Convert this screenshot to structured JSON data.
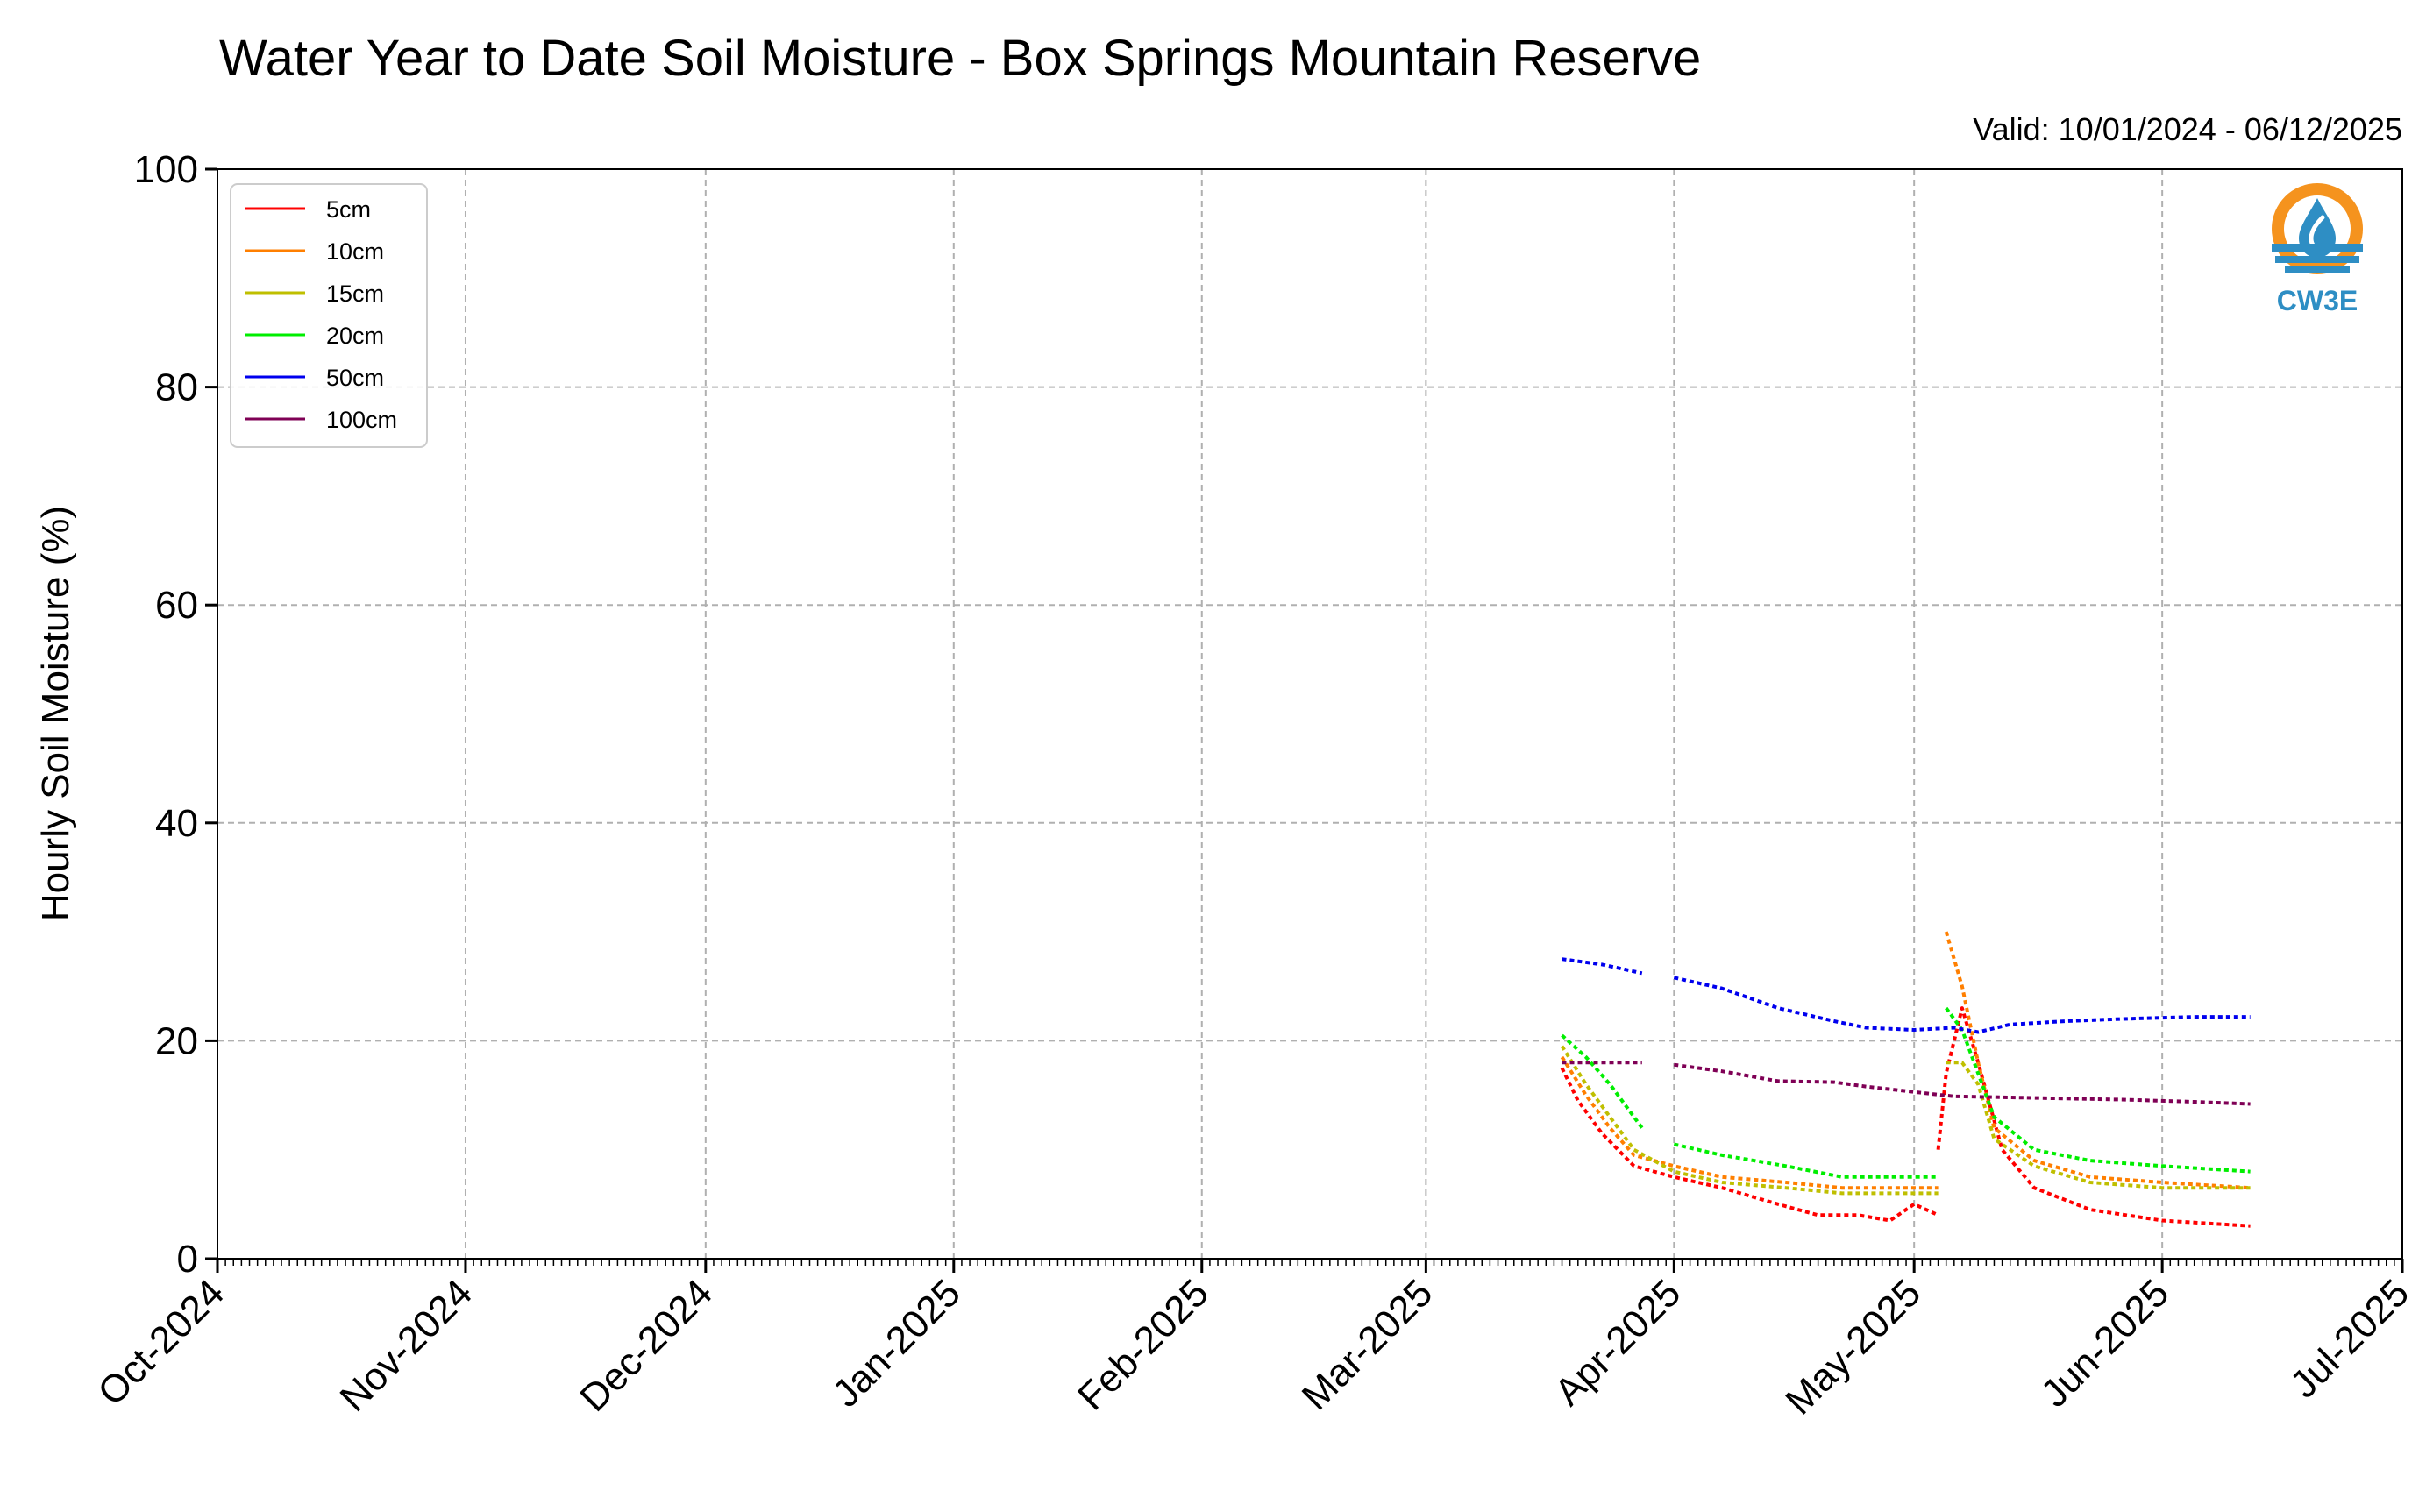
{
  "chart_data": {
    "type": "line",
    "title": "Water Year to Date Soil Moisture - Box Springs Mountain Reserve",
    "subtitle": "Valid: 10/01/2024 - 06/12/2025",
    "ylabel": "Hourly Soil Moisture (%)",
    "xlabel": "",
    "ylim": [
      0,
      100
    ],
    "xlim": [
      "2024-10-01",
      "2025-07-01"
    ],
    "yticks": [
      "0",
      "20",
      "40",
      "60",
      "80",
      "100"
    ],
    "xticks": [
      "Oct-2024",
      "Nov-2024",
      "Dec-2024",
      "Jan-2025",
      "Feb-2025",
      "Mar-2025",
      "Apr-2025",
      "May-2025",
      "Jun-2025",
      "Jul-2025"
    ],
    "grid": true,
    "legend_position": "top-left",
    "series": [
      {
        "name": "5cm",
        "color": "#ff0000",
        "points": [
          [
            "2025-03-18",
            17.5
          ],
          [
            "2025-03-20",
            14.5
          ],
          [
            "2025-03-23",
            11.5
          ],
          [
            "2025-03-27",
            8.5
          ],
          [
            "2025-04-01",
            7.5
          ],
          [
            "2025-04-07",
            6.5
          ],
          [
            "2025-04-14",
            5.0
          ],
          [
            "2025-04-19",
            4.0
          ],
          [
            "2025-04-24",
            4.0
          ],
          [
            "2025-04-28",
            3.5
          ],
          [
            "2025-05-01",
            5.0
          ],
          [
            "2025-05-04",
            4.0
          ],
          null,
          [
            "2025-05-04",
            10.0
          ],
          [
            "2025-05-05",
            17.0
          ],
          [
            "2025-05-07",
            23.0
          ],
          [
            "2025-05-09",
            18.0
          ],
          [
            "2025-05-12",
            10.0
          ],
          [
            "2025-05-16",
            6.5
          ],
          [
            "2025-05-23",
            4.5
          ],
          [
            "2025-06-01",
            3.5
          ],
          [
            "2025-06-12",
            3.0
          ]
        ]
      },
      {
        "name": "10cm",
        "color": "#ff7f00",
        "points": [
          [
            "2025-03-18",
            18.5
          ],
          [
            "2025-03-21",
            15.0
          ],
          [
            "2025-03-24",
            12.0
          ],
          [
            "2025-03-27",
            9.5
          ],
          [
            "2025-04-01",
            8.5
          ],
          [
            "2025-04-07",
            7.5
          ],
          [
            "2025-04-15",
            7.0
          ],
          [
            "2025-04-22",
            6.5
          ],
          [
            "2025-05-01",
            6.5
          ],
          [
            "2025-05-04",
            6.5
          ],
          null,
          [
            "2025-05-05",
            30.0
          ],
          [
            "2025-05-07",
            25.0
          ],
          [
            "2025-05-09",
            18.0
          ],
          [
            "2025-05-11",
            12.0
          ],
          [
            "2025-05-16",
            9.0
          ],
          [
            "2025-05-23",
            7.5
          ],
          [
            "2025-06-01",
            7.0
          ],
          [
            "2025-06-12",
            6.5
          ]
        ]
      },
      {
        "name": "15cm",
        "color": "#bfbf00",
        "points": [
          [
            "2025-03-18",
            19.5
          ],
          [
            "2025-03-21",
            16.0
          ],
          [
            "2025-03-24",
            13.0
          ],
          [
            "2025-03-27",
            10.0
          ],
          [
            "2025-04-01",
            8.0
          ],
          [
            "2025-04-07",
            7.0
          ],
          [
            "2025-04-15",
            6.5
          ],
          [
            "2025-04-22",
            6.0
          ],
          [
            "2025-05-01",
            6.0
          ],
          [
            "2025-05-04",
            6.0
          ],
          null,
          [
            "2025-05-05",
            18.0
          ],
          [
            "2025-05-07",
            18.0
          ],
          [
            "2025-05-09",
            16.0
          ],
          [
            "2025-05-11",
            11.0
          ],
          [
            "2025-05-16",
            8.5
          ],
          [
            "2025-05-23",
            7.0
          ],
          [
            "2025-06-01",
            6.5
          ],
          [
            "2025-06-12",
            6.5
          ]
        ]
      },
      {
        "name": "20cm",
        "color": "#00ee00",
        "points": [
          [
            "2025-03-18",
            20.5
          ],
          [
            "2025-03-21",
            18.5
          ],
          [
            "2025-03-24",
            16.0
          ],
          [
            "2025-03-28",
            12.0
          ],
          null,
          [
            "2025-04-01",
            10.5
          ],
          [
            "2025-04-07",
            9.5
          ],
          [
            "2025-04-15",
            8.5
          ],
          [
            "2025-04-22",
            7.5
          ],
          [
            "2025-05-01",
            7.5
          ],
          [
            "2025-05-04",
            7.5
          ],
          null,
          [
            "2025-05-05",
            23.0
          ],
          [
            "2025-05-07",
            21.0
          ],
          [
            "2025-05-09",
            17.0
          ],
          [
            "2025-05-11",
            13.0
          ],
          [
            "2025-05-16",
            10.0
          ],
          [
            "2025-05-23",
            9.0
          ],
          [
            "2025-06-01",
            8.5
          ],
          [
            "2025-06-12",
            8.0
          ]
        ]
      },
      {
        "name": "50cm",
        "color": "#0000ee",
        "points": [
          [
            "2025-03-18",
            27.5
          ],
          [
            "2025-03-23",
            27.0
          ],
          [
            "2025-03-28",
            26.2
          ],
          null,
          [
            "2025-04-01",
            25.8
          ],
          [
            "2025-04-07",
            24.8
          ],
          [
            "2025-04-14",
            23.0
          ],
          [
            "2025-04-21",
            21.8
          ],
          [
            "2025-04-25",
            21.2
          ],
          [
            "2025-05-01",
            21.0
          ],
          [
            "2025-05-06",
            21.2
          ],
          [
            "2025-05-09",
            20.8
          ],
          [
            "2025-05-13",
            21.5
          ],
          [
            "2025-05-20",
            21.8
          ],
          [
            "2025-05-27",
            22.0
          ],
          [
            "2025-06-05",
            22.2
          ],
          [
            "2025-06-12",
            22.2
          ]
        ]
      },
      {
        "name": "100cm",
        "color": "#7f0055",
        "points": [
          [
            "2025-03-18",
            18.0
          ],
          [
            "2025-03-23",
            18.0
          ],
          [
            "2025-03-28",
            18.0
          ],
          null,
          [
            "2025-04-01",
            17.8
          ],
          [
            "2025-04-07",
            17.2
          ],
          [
            "2025-04-14",
            16.3
          ],
          [
            "2025-04-21",
            16.2
          ],
          [
            "2025-04-25",
            15.8
          ],
          [
            "2025-05-01",
            15.3
          ],
          [
            "2025-05-06",
            14.9
          ],
          [
            "2025-05-13",
            14.8
          ],
          [
            "2025-05-20",
            14.7
          ],
          [
            "2025-05-27",
            14.6
          ],
          [
            "2025-06-05",
            14.4
          ],
          [
            "2025-06-12",
            14.2
          ]
        ]
      }
    ]
  },
  "logo": {
    "text": "CW3E",
    "icon": "cw3e-logo-icon",
    "accent_color": "#f5931e",
    "brand_color": "#2e8ec4"
  }
}
